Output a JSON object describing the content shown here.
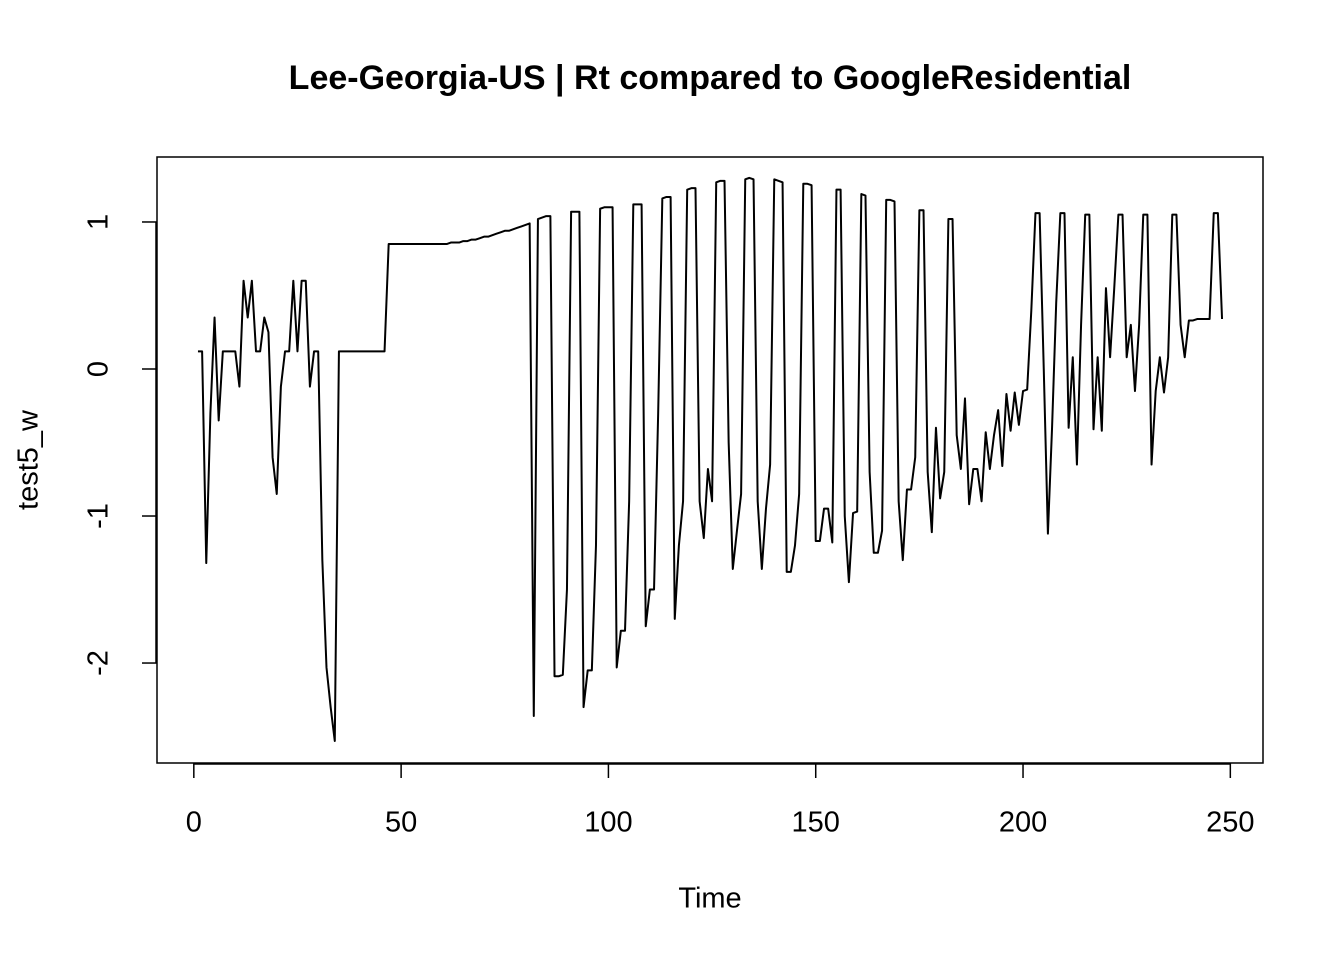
{
  "chart_data": {
    "type": "line",
    "title": "Lee-Georgia-US | Rt compared to GoogleResidential",
    "xlabel": "Time",
    "ylabel": "test5_w",
    "color": "#000000",
    "xlim": [
      -8.88,
      257.88
    ],
    "ylim": [
      -2.68,
      1.442
    ],
    "xticks": [
      0,
      50,
      100,
      150,
      200,
      250
    ],
    "yticks": [
      -2,
      -1,
      0,
      1
    ],
    "x": [
      1,
      2,
      3,
      4,
      5,
      6,
      7,
      8,
      9,
      10,
      11,
      12,
      13,
      14,
      15,
      16,
      17,
      18,
      19,
      20,
      21,
      22,
      23,
      24,
      25,
      26,
      27,
      28,
      29,
      30,
      31,
      32,
      33,
      34,
      35,
      36,
      37,
      38,
      39,
      40,
      41,
      42,
      43,
      44,
      45,
      46,
      47,
      48,
      49,
      50,
      51,
      52,
      53,
      54,
      55,
      56,
      57,
      58,
      59,
      60,
      61,
      62,
      63,
      64,
      65,
      66,
      67,
      68,
      69,
      70,
      71,
      72,
      73,
      74,
      75,
      76,
      77,
      78,
      79,
      80,
      81,
      82,
      83,
      84,
      85,
      86,
      87,
      88,
      89,
      90,
      91,
      92,
      93,
      94,
      95,
      96,
      97,
      98,
      99,
      100,
      101,
      102,
      103,
      104,
      105,
      106,
      107,
      108,
      109,
      110,
      111,
      112,
      113,
      114,
      115,
      116,
      117,
      118,
      119,
      120,
      121,
      122,
      123,
      124,
      125,
      126,
      127,
      128,
      129,
      130,
      131,
      132,
      133,
      134,
      135,
      136,
      137,
      138,
      139,
      140,
      141,
      142,
      143,
      144,
      145,
      146,
      147,
      148,
      149,
      150,
      151,
      152,
      153,
      154,
      155,
      156,
      157,
      158,
      159,
      160,
      161,
      162,
      163,
      164,
      165,
      166,
      167,
      168,
      169,
      170,
      171,
      172,
      173,
      174,
      175,
      176,
      177,
      178,
      179,
      180,
      181,
      182,
      183,
      184,
      185,
      186,
      187,
      188,
      189,
      190,
      191,
      192,
      193,
      194,
      195,
      196,
      197,
      198,
      199,
      200,
      201,
      202,
      203,
      204,
      205,
      206,
      207,
      208,
      209,
      210,
      211,
      212,
      213,
      214,
      215,
      216,
      217,
      218,
      219,
      220,
      221,
      222,
      223,
      224,
      225,
      226,
      227,
      228,
      229,
      230,
      231,
      232,
      233,
      234,
      235,
      236,
      237,
      238,
      239,
      240,
      241,
      242,
      243,
      244,
      245,
      246,
      247,
      248
    ],
    "values": [
      0.12,
      0.12,
      -1.32,
      -0.3,
      0.35,
      -0.35,
      0.12,
      0.12,
      0.12,
      0.12,
      -0.12,
      0.6,
      0.35,
      0.6,
      0.12,
      0.12,
      0.35,
      0.25,
      -0.6,
      -0.85,
      -0.12,
      0.12,
      0.12,
      0.6,
      0.12,
      0.6,
      0.6,
      -0.12,
      0.12,
      0.12,
      -1.3,
      -2.03,
      -2.3,
      -2.53,
      0.12,
      0.12,
      0.12,
      0.12,
      0.12,
      0.12,
      0.12,
      0.12,
      0.12,
      0.12,
      0.12,
      0.12,
      0.85,
      0.85,
      0.85,
      0.85,
      0.85,
      0.85,
      0.85,
      0.85,
      0.85,
      0.85,
      0.85,
      0.85,
      0.85,
      0.85,
      0.85,
      0.86,
      0.86,
      0.86,
      0.87,
      0.87,
      0.88,
      0.88,
      0.89,
      0.9,
      0.9,
      0.91,
      0.92,
      0.93,
      0.94,
      0.94,
      0.95,
      0.96,
      0.97,
      0.98,
      0.99,
      -2.36,
      1.02,
      1.03,
      1.04,
      1.04,
      -2.09,
      -2.09,
      -2.08,
      -1.5,
      1.07,
      1.07,
      1.07,
      -2.3,
      -2.05,
      -2.05,
      -1.2,
      1.09,
      1.1,
      1.1,
      1.1,
      -2.03,
      -1.78,
      -1.78,
      -0.9,
      1.12,
      1.12,
      1.12,
      -1.75,
      -1.5,
      -1.5,
      -0.3,
      1.16,
      1.17,
      1.17,
      -1.7,
      -1.2,
      -0.9,
      1.22,
      1.23,
      1.23,
      -0.9,
      -1.15,
      -0.68,
      -0.9,
      1.27,
      1.28,
      1.28,
      -0.5,
      -1.36,
      -1.1,
      -0.85,
      1.29,
      1.3,
      1.29,
      -0.9,
      -1.36,
      -0.95,
      -0.65,
      1.29,
      1.28,
      1.27,
      -1.38,
      -1.38,
      -1.2,
      -0.85,
      1.26,
      1.26,
      1.25,
      -1.17,
      -1.17,
      -0.95,
      -0.95,
      -1.18,
      1.22,
      1.22,
      -1.0,
      -1.45,
      -0.98,
      -0.97,
      1.19,
      1.18,
      -0.7,
      -1.25,
      -1.25,
      -1.1,
      1.15,
      1.15,
      1.14,
      -0.9,
      -1.3,
      -0.82,
      -0.82,
      -0.6,
      1.08,
      1.08,
      -0.7,
      -1.11,
      -0.4,
      -0.88,
      -0.7,
      1.02,
      1.02,
      -0.45,
      -0.68,
      -0.2,
      -0.92,
      -0.68,
      -0.68,
      -0.9,
      -0.43,
      -0.68,
      -0.45,
      -0.28,
      -0.66,
      -0.17,
      -0.42,
      -0.16,
      -0.38,
      -0.15,
      -0.14,
      0.4,
      1.06,
      1.06,
      0.0,
      -1.12,
      -0.4,
      0.45,
      1.06,
      1.06,
      -0.4,
      0.08,
      -0.65,
      0.3,
      1.05,
      1.05,
      -0.41,
      0.08,
      -0.42,
      0.55,
      0.08,
      0.55,
      1.05,
      1.05,
      0.08,
      0.3,
      -0.15,
      0.3,
      1.05,
      1.05,
      -0.65,
      -0.15,
      0.08,
      -0.16,
      0.08,
      1.05,
      1.05,
      0.3,
      0.08,
      0.33,
      0.33,
      0.34,
      0.34,
      0.34,
      0.34,
      1.06,
      1.06,
      0.34
    ]
  }
}
